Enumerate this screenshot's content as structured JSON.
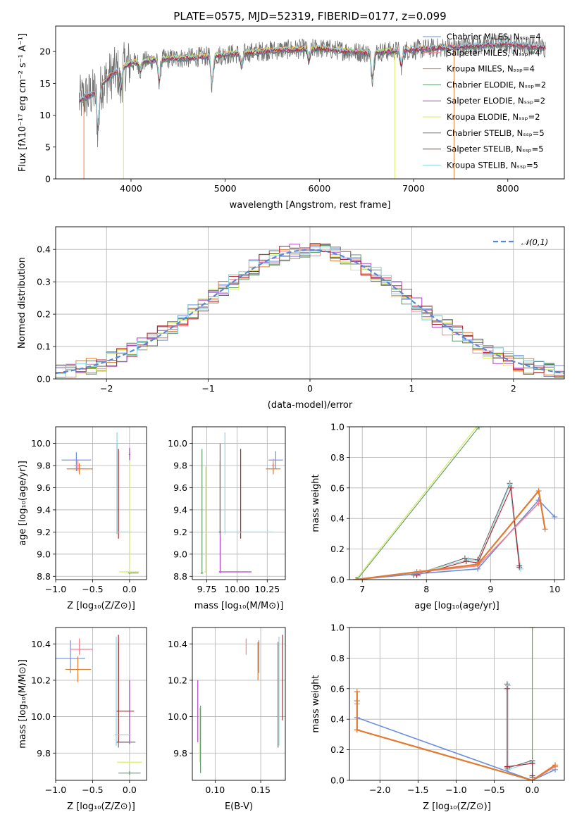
{
  "figure_title": "PLATE=0575, MJD=52319, FIBERID=0177, z=0.099",
  "colors": {
    "Chabrier MILES": "#6a8fdc",
    "Salpeter MILES": "#f58290",
    "Kroupa MILES": "#e07b30",
    "Chabrier ELODIE": "#5e9a6a",
    "Salpeter ELODIE": "#b040c8",
    "Kroupa ELODIE": "#d8ec5a",
    "Chabrier STELIB": "#707070",
    "Salpeter STELIB": "#b5222a",
    "Kroupa STELIB": "#8ad8e0",
    "gaussian": "#5b86d6"
  },
  "chart_data": [
    {
      "id": "spectrum",
      "type": "line",
      "xlabel": "wavelength [Angstrom, rest frame]",
      "ylabel": "Flux [fλ10⁻¹⁷ erg cm⁻² s⁻¹ A⁻¹]",
      "xlim": [
        3200,
        8600
      ],
      "ylim": [
        0,
        24
      ],
      "xticks": [
        4000,
        5000,
        6000,
        7000,
        8000
      ],
      "yticks": [
        0,
        5,
        10,
        15,
        20
      ],
      "legend_position": "top-right",
      "legend": [
        "Chabrier MILES, Nₛₛₚ=4",
        "Salpeter MILES, Nₛₛₚ=4",
        "Kroupa MILES, Nₛₛₚ=4",
        "Chabrier ELODIE, Nₛₛₚ=2",
        "Salpeter ELODIE, Nₛₛₚ=2",
        "Kroupa ELODIE, Nₛₛₚ=2",
        "Chabrier STELIB, Nₛₛₚ=5",
        "Salpeter STELIB, Nₛₛₚ=5",
        "Kroupa STELIB, Nₛₛₚ=5"
      ],
      "continuum": {
        "x": [
          3450,
          3600,
          3800,
          4000,
          4300,
          4600,
          5000,
          5500,
          6000,
          6500,
          7000,
          7500,
          8000,
          8400
        ],
        "y": [
          12.3,
          13.5,
          16.5,
          18.2,
          18.8,
          19.0,
          19.5,
          20.2,
          20.5,
          19.8,
          20.3,
          20.8,
          21.2,
          20.6
        ]
      },
      "dips": [
        {
          "x": 3650,
          "y": 8
        },
        {
          "x": 3890,
          "y": 14
        },
        {
          "x": 4100,
          "y": 17
        },
        {
          "x": 4300,
          "y": 15.5
        },
        {
          "x": 4860,
          "y": 15
        },
        {
          "x": 5175,
          "y": 17.5
        },
        {
          "x": 5890,
          "y": 18.5
        },
        {
          "x": 6563,
          "y": 16
        },
        {
          "x": 6870,
          "y": 17.8
        }
      ],
      "cutoffs": [
        {
          "series": "Kroupa MILES",
          "x_start": 3500,
          "x_end": 7430
        },
        {
          "series": "Kroupa ELODIE",
          "x_start": 3920,
          "x_end": 6800
        }
      ]
    },
    {
      "id": "residuals",
      "type": "histogram",
      "xlabel": "(data-model)/error",
      "ylabel": "Normed distribution",
      "xlim": [
        -2.5,
        2.5
      ],
      "ylim": [
        0,
        0.47
      ],
      "xticks": [
        -2,
        -1,
        0,
        1,
        2
      ],
      "yticks": [
        0.0,
        0.1,
        0.2,
        0.3,
        0.4
      ],
      "legend_position": "top-right",
      "gaussian_label": "𝒩(0,1)",
      "bin_width": 0.1
    },
    {
      "id": "age_vs_Z",
      "type": "errorbar",
      "xlabel": "Z [log₁₀(Z/Z⊙)]",
      "ylabel": "age  [log₁₀(age/yr)]",
      "xlim": [
        -1.0,
        0.23
      ],
      "ylim": [
        8.77,
        10.15
      ],
      "xticks": [
        -1.0,
        -0.5,
        0.0
      ],
      "yticks": [
        8.8,
        9.0,
        9.2,
        9.4,
        9.6,
        9.8,
        10.0
      ],
      "points": [
        {
          "series": "Chabrier MILES",
          "x": -0.72,
          "xerr": [
            0.2,
            0.2
          ],
          "y": 9.85,
          "yerr": [
            0.1,
            0.07
          ]
        },
        {
          "series": "Salpeter MILES",
          "x": -0.7,
          "xerr": [
            0.05,
            0.05
          ],
          "y": 9.8,
          "yerr": [
            0.05,
            0.05
          ]
        },
        {
          "series": "Kroupa MILES",
          "x": -0.68,
          "xerr": [
            0.17,
            0.18
          ],
          "y": 9.77,
          "yerr": [
            0.05,
            0.05
          ]
        },
        {
          "series": "Chabrier ELODIE",
          "x": 0.0,
          "xerr": [
            0.02,
            0.12
          ],
          "y": 8.83,
          "yerr": [
            0.01,
            0.01
          ]
        },
        {
          "series": "Salpeter ELODIE",
          "x": 0.0,
          "xerr": [
            0.01,
            0.01
          ],
          "y": 9.9,
          "yerr": [
            0.05,
            0.06
          ]
        },
        {
          "series": "Kroupa ELODIE",
          "x": 0.0,
          "xerr": [
            0.14,
            0.13
          ],
          "y": 8.84,
          "yerr": [
            0.01,
            1.0
          ]
        },
        {
          "series": "Chabrier STELIB",
          "x": -0.17,
          "xerr": [
            0.01,
            0.01
          ],
          "y": 9.2,
          "yerr": [
            0.02,
            0.8
          ]
        },
        {
          "series": "Salpeter STELIB",
          "x": -0.15,
          "xerr": [
            0.01,
            0.01
          ],
          "y": 9.2,
          "yerr": [
            0.06,
            0.75
          ]
        },
        {
          "series": "Kroupa STELIB",
          "x": -0.17,
          "xerr": [
            0.01,
            0.2
          ],
          "y": 9.2,
          "yerr": [
            0.02,
            0.9
          ]
        }
      ]
    },
    {
      "id": "age_vs_mass",
      "type": "errorbar",
      "xlabel": "mass [log₁₀(M/M⊙)]",
      "ylabel": "",
      "xlim": [
        9.63,
        10.4
      ],
      "ylim": [
        8.77,
        10.15
      ],
      "xticks": [
        9.75,
        10.0,
        10.25
      ],
      "yticks": [
        8.8,
        9.0,
        9.2,
        9.4,
        9.6,
        9.8,
        10.0
      ],
      "points": [
        {
          "series": "Chabrier MILES",
          "x": 10.32,
          "xerr": [
            0.06,
            0.06
          ],
          "y": 9.85,
          "yerr": [
            0.08,
            0.08
          ]
        },
        {
          "series": "Salpeter MILES",
          "x": 10.3,
          "xerr": [
            0.01,
            0.01
          ],
          "y": 9.8,
          "yerr": [
            0.06,
            0.06
          ]
        },
        {
          "series": "Kroupa MILES",
          "x": 10.3,
          "xerr": [
            0.06,
            0.06
          ],
          "y": 9.77,
          "yerr": [
            0.05,
            0.05
          ]
        },
        {
          "series": "Chabrier ELODIE",
          "x": 9.71,
          "xerr": [
            0.01,
            0.01
          ],
          "y": 8.83,
          "yerr": [
            0.01,
            1.12
          ]
        },
        {
          "series": "Salpeter ELODIE",
          "x": 9.86,
          "xerr": [
            0.01,
            0.26
          ],
          "y": 8.84,
          "yerr": [
            0.01,
            1.0
          ]
        },
        {
          "series": "Kroupa ELODIE",
          "x": 9.74,
          "xerr": [
            0.01,
            0.01
          ],
          "y": 8.84,
          "yerr": [
            0.01,
            0.95
          ]
        },
        {
          "series": "Chabrier STELIB",
          "x": 9.86,
          "xerr": [
            0.01,
            0.01
          ],
          "y": 9.2,
          "yerr": [
            0.02,
            0.8
          ]
        },
        {
          "series": "Salpeter STELIB",
          "x": 10.03,
          "xerr": [
            0.01,
            0.01
          ],
          "y": 9.2,
          "yerr": [
            0.06,
            0.75
          ]
        },
        {
          "series": "Kroupa STELIB",
          "x": 9.9,
          "xerr": [
            0.01,
            0.4
          ],
          "y": 9.2,
          "yerr": [
            0.02,
            0.9
          ]
        }
      ]
    },
    {
      "id": "mass_weight_vs_age",
      "type": "line",
      "xlabel": "age  [log₁₀(age/yr)]",
      "ylabel": "mass weight",
      "xlim": [
        6.8,
        10.15
      ],
      "ylim": [
        0,
        1
      ],
      "xticks": [
        7,
        8,
        9,
        10
      ],
      "yticks": [
        0.0,
        0.2,
        0.4,
        0.6,
        0.8,
        1.0
      ],
      "series": [
        {
          "name": "Kroupa ELODIE",
          "x": [
            6.9,
            8.78
          ],
          "y": [
            0.0,
            1.0
          ]
        },
        {
          "name": "Chabrier ELODIE",
          "x": [
            6.92,
            8.82
          ],
          "y": [
            0.0,
            1.0
          ]
        },
        {
          "name": "Chabrier STELIB",
          "x": [
            7.8,
            8.6,
            8.8,
            9.3,
            9.45
          ],
          "y": [
            0.03,
            0.14,
            0.13,
            0.63,
            0.08
          ]
        },
        {
          "name": "Kroupa STELIB",
          "x": [
            7.82,
            8.65,
            8.82,
            9.3,
            9.47
          ],
          "y": [
            0.04,
            0.13,
            0.12,
            0.62,
            0.07
          ]
        },
        {
          "name": "Salpeter STELIB",
          "x": [
            7.85,
            8.62,
            8.8,
            9.32,
            9.45
          ],
          "y": [
            0.03,
            0.12,
            0.11,
            0.6,
            0.09
          ]
        },
        {
          "name": "Chabrier MILES",
          "x": [
            6.9,
            7.9,
            8.8,
            9.75,
            10.0
          ],
          "y": [
            0.0,
            0.04,
            0.07,
            0.52,
            0.41
          ]
        },
        {
          "name": "Salpeter MILES",
          "x": [
            6.9,
            7.9,
            8.8,
            9.75
          ],
          "y": [
            0.0,
            0.05,
            0.09,
            0.5
          ]
        },
        {
          "name": "Kroupa MILES",
          "x": [
            6.9,
            7.85,
            8.8,
            9.75,
            9.85
          ],
          "y": [
            0.0,
            0.05,
            0.1,
            0.58,
            0.33
          ]
        }
      ]
    },
    {
      "id": "mass_vs_Z",
      "type": "errorbar",
      "xlabel": "Z [log₁₀(Z/Z⊙)]",
      "ylabel": "mass [log₁₀(M/M⊙)]",
      "xlim": [
        -1.0,
        0.23
      ],
      "ylim": [
        9.65,
        10.49
      ],
      "xticks": [
        -1.0,
        -0.5,
        0.0
      ],
      "yticks": [
        9.8,
        10.0,
        10.2,
        10.4
      ],
      "points": [
        {
          "series": "Chabrier MILES",
          "x": -0.8,
          "xerr": [
            0.2,
            0.2
          ],
          "y": 10.32,
          "yerr": [
            0.08,
            0.1
          ]
        },
        {
          "series": "Salpeter MILES",
          "x": -0.68,
          "xerr": [
            0.12,
            0.18
          ],
          "y": 10.37,
          "yerr": [
            0.03,
            0.06
          ]
        },
        {
          "series": "Kroupa MILES",
          "x": -0.7,
          "xerr": [
            0.17,
            0.18
          ],
          "y": 10.26,
          "yerr": [
            0.07,
            0.07
          ]
        },
        {
          "series": "Chabrier ELODIE",
          "x": 0.0,
          "xerr": [
            0.15,
            0.15
          ],
          "y": 9.69,
          "yerr": [
            0.01,
            0.01
          ]
        },
        {
          "series": "Salpeter ELODIE",
          "x": 0.0,
          "xerr": [
            0.17,
            0.0
          ],
          "y": 9.86,
          "yerr": [
            0.01,
            0.34
          ]
        },
        {
          "series": "Kroupa ELODIE",
          "x": 0.0,
          "xerr": [
            0.17,
            0.17
          ],
          "y": 9.75,
          "yerr": [
            0.01,
            0.01
          ]
        },
        {
          "series": "Chabrier STELIB",
          "x": -0.15,
          "xerr": [
            0.03,
            0.23
          ],
          "y": 9.86,
          "yerr": [
            0.03,
            0.55
          ]
        },
        {
          "series": "Salpeter STELIB",
          "x": -0.15,
          "xerr": [
            0.03,
            0.21
          ],
          "y": 10.03,
          "yerr": [
            0.17,
            0.42
          ]
        },
        {
          "series": "Kroupa STELIB",
          "x": -0.18,
          "xerr": [
            0.02,
            0.2
          ],
          "y": 9.9,
          "yerr": [
            0.06,
            0.54
          ]
        }
      ]
    },
    {
      "id": "mass_vs_EBV",
      "type": "errorbar",
      "xlabel": "E(B-V)",
      "ylabel": "",
      "xlim": [
        0.075,
        0.177
      ],
      "ylim": [
        9.65,
        10.49
      ],
      "xticks": [
        0.1,
        0.15
      ],
      "yticks": [
        9.8,
        10.0,
        10.2,
        10.4
      ],
      "points": [
        {
          "series": "Salpeter ELODIE",
          "x": 0.081,
          "y": 9.86,
          "yerr": [
            0.0,
            0.34
          ]
        },
        {
          "series": "Kroupa ELODIE",
          "x": 0.083,
          "y": 9.75,
          "yerr": [
            0.0,
            0.3
          ]
        },
        {
          "series": "Chabrier ELODIE",
          "x": 0.084,
          "y": 9.69,
          "yerr": [
            0.0,
            0.37
          ]
        },
        {
          "series": "Salpeter MILES",
          "x": 0.134,
          "y": 10.37,
          "yerr": [
            0.03,
            0.06
          ]
        },
        {
          "series": "Kroupa MILES",
          "x": 0.147,
          "y": 10.26,
          "yerr": [
            0.06,
            0.15
          ]
        },
        {
          "series": "Chabrier MILES",
          "x": 0.148,
          "y": 10.32,
          "yerr": [
            0.08,
            0.1
          ]
        },
        {
          "series": "Chabrier STELIB",
          "x": 0.169,
          "y": 9.86,
          "yerr": [
            0.03,
            0.55
          ]
        },
        {
          "series": "Kroupa STELIB",
          "x": 0.17,
          "y": 9.9,
          "yerr": [
            0.06,
            0.54
          ]
        },
        {
          "series": "Salpeter STELIB",
          "x": 0.174,
          "y": 10.03,
          "yerr": [
            0.05,
            0.42
          ]
        }
      ]
    },
    {
      "id": "mass_weight_vs_Z",
      "type": "line",
      "xlabel": "Z [log₁₀(Z/Z⊙)]",
      "ylabel": "mass weight",
      "xlim": [
        -2.4,
        0.42
      ],
      "ylim": [
        0,
        1
      ],
      "xticks": [
        -2.0,
        -1.5,
        -1.0,
        -0.5,
        0.0
      ],
      "yticks": [
        0.0,
        0.2,
        0.4,
        0.6,
        0.8,
        1.0
      ],
      "series": [
        {
          "name": "Kroupa ELODIE",
          "x": [
            0.0,
            0.0
          ],
          "y": [
            0.0,
            1.0
          ]
        },
        {
          "name": "Chabrier ELODIE",
          "x": [
            0.0,
            0.0
          ],
          "y": [
            0.0,
            1.0
          ]
        },
        {
          "name": "Chabrier STELIB",
          "x": [
            -0.33,
            -0.33,
            0.0,
            0.0
          ],
          "y": [
            0.63,
            0.08,
            0.13,
            0.02
          ]
        },
        {
          "name": "Kroupa STELIB",
          "x": [
            -0.32,
            -0.32,
            0.0,
            0.0
          ],
          "y": [
            0.62,
            0.07,
            0.12,
            0.03
          ]
        },
        {
          "name": "Salpeter STELIB",
          "x": [
            -0.33,
            -0.33,
            0.0,
            0.0
          ],
          "y": [
            0.6,
            0.09,
            0.11,
            0.03
          ]
        },
        {
          "name": "Chabrier MILES",
          "x": [
            -2.3,
            0.0,
            0.3
          ],
          "y": [
            0.41,
            0.0,
            0.07
          ]
        },
        {
          "name": "Salpeter MILES",
          "x": [
            -2.3,
            -2.3,
            0.0,
            0.3
          ],
          "y": [
            0.5,
            0.33,
            0.0,
            0.09
          ]
        },
        {
          "name": "Kroupa MILES",
          "x": [
            -2.3,
            -2.3,
            -2.3,
            0.0,
            0.3
          ],
          "y": [
            0.58,
            0.52,
            0.33,
            0.0,
            0.1
          ]
        }
      ]
    }
  ]
}
